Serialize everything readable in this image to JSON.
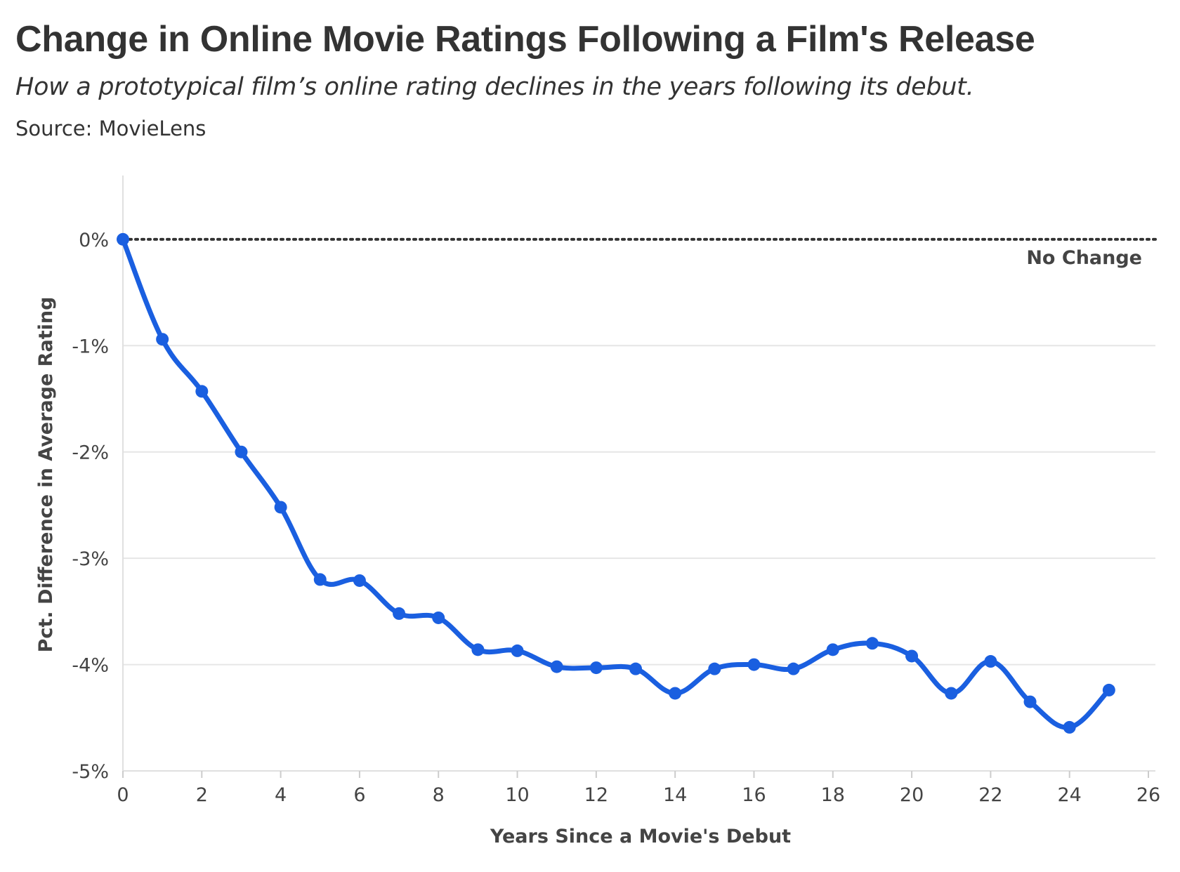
{
  "chart_data": {
    "type": "line",
    "title": "Change in Online Movie Ratings Following a Film's Release",
    "subtitle": "How a prototypical film’s online rating declines in the years following its debut.",
    "source": "Source: MovieLens",
    "xlabel": "Years Since a Movie's Debut",
    "ylabel": "Pct. Difference in Average Rating",
    "xlim": [
      0,
      26
    ],
    "ylim": [
      -5,
      0.6
    ],
    "x_ticks": [
      0,
      2,
      4,
      6,
      8,
      10,
      12,
      14,
      16,
      18,
      20,
      22,
      24,
      26
    ],
    "y_ticks": [
      0,
      -1,
      -2,
      -3,
      -4,
      -5
    ],
    "y_tick_format": "%",
    "grid": true,
    "series": [
      {
        "color": "#1a5fe0",
        "x": [
          0,
          1,
          2,
          3,
          4,
          5,
          6,
          7,
          8,
          9,
          10,
          11,
          12,
          13,
          14,
          15,
          16,
          17,
          18,
          19,
          20,
          21,
          22,
          23,
          24,
          25
        ],
        "y": [
          0,
          -0.94,
          -1.43,
          -2.0,
          -2.52,
          -3.2,
          -3.21,
          -3.52,
          -3.56,
          -3.86,
          -3.87,
          -4.02,
          -4.03,
          -4.04,
          -4.27,
          -4.04,
          -4.0,
          -4.04,
          -3.86,
          -3.8,
          -3.92,
          -4.27,
          -3.97,
          -4.35,
          -4.59,
          -4.24
        ]
      }
    ],
    "reference_line": {
      "y": 0,
      "label": "No Change",
      "style": "dotted"
    }
  }
}
